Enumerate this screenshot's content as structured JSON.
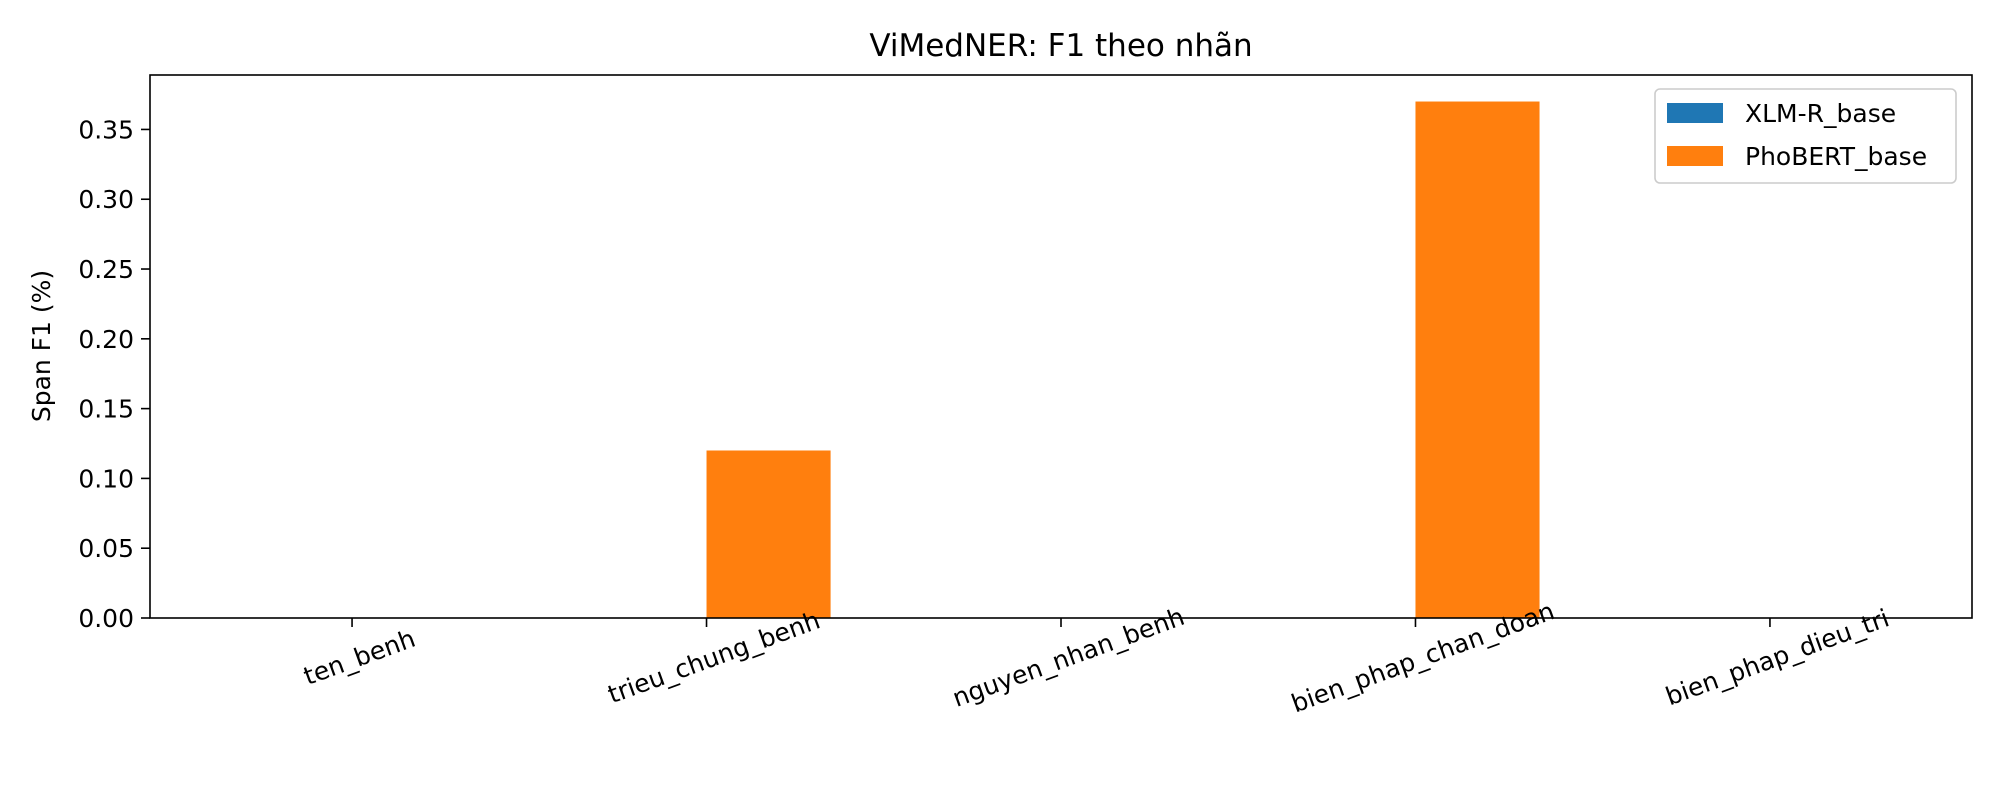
{
  "chart_data": {
    "type": "bar",
    "title": "ViMedNER: F1 theo nhãn",
    "xlabel": "",
    "ylabel": "Span F1 (%)",
    "categories": [
      "ten_benh",
      "trieu_chung_benh",
      "nguyen_nhan_benh",
      "bien_phap_chan_doan",
      "bien_phap_dieu_tri"
    ],
    "series": [
      {
        "name": "XLM-R_base",
        "color": "#1f77b4",
        "values": [
          0,
          0,
          0,
          0,
          0
        ]
      },
      {
        "name": "PhoBERT_base",
        "color": "#ff7f0e",
        "values": [
          0,
          0.12,
          0,
          0.37,
          0
        ]
      }
    ],
    "ylim": [
      0,
      0.389
    ],
    "yticks": [
      "0.00",
      "0.05",
      "0.10",
      "0.15",
      "0.20",
      "0.25",
      "0.30",
      "0.35"
    ],
    "grid": false,
    "legend_position": "top-right"
  }
}
